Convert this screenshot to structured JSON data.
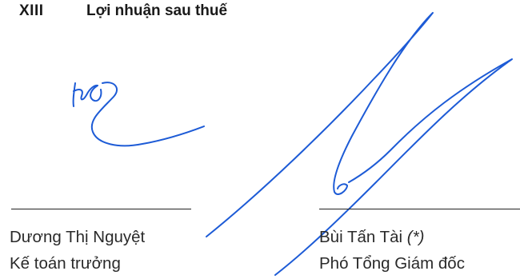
{
  "section": {
    "number": "XIII",
    "title": "Lợi nhuận sau thuế"
  },
  "signers": {
    "left": {
      "name": "Dương Thị Nguyệt",
      "role": "Kế toán trưởng"
    },
    "right": {
      "name": "Bùi Tấn Tài",
      "note": "(*)",
      "role": "Phó Tổng Giám đốc"
    }
  },
  "colors": {
    "ink": "#1d5bd6",
    "text": "#2a2a2a"
  }
}
